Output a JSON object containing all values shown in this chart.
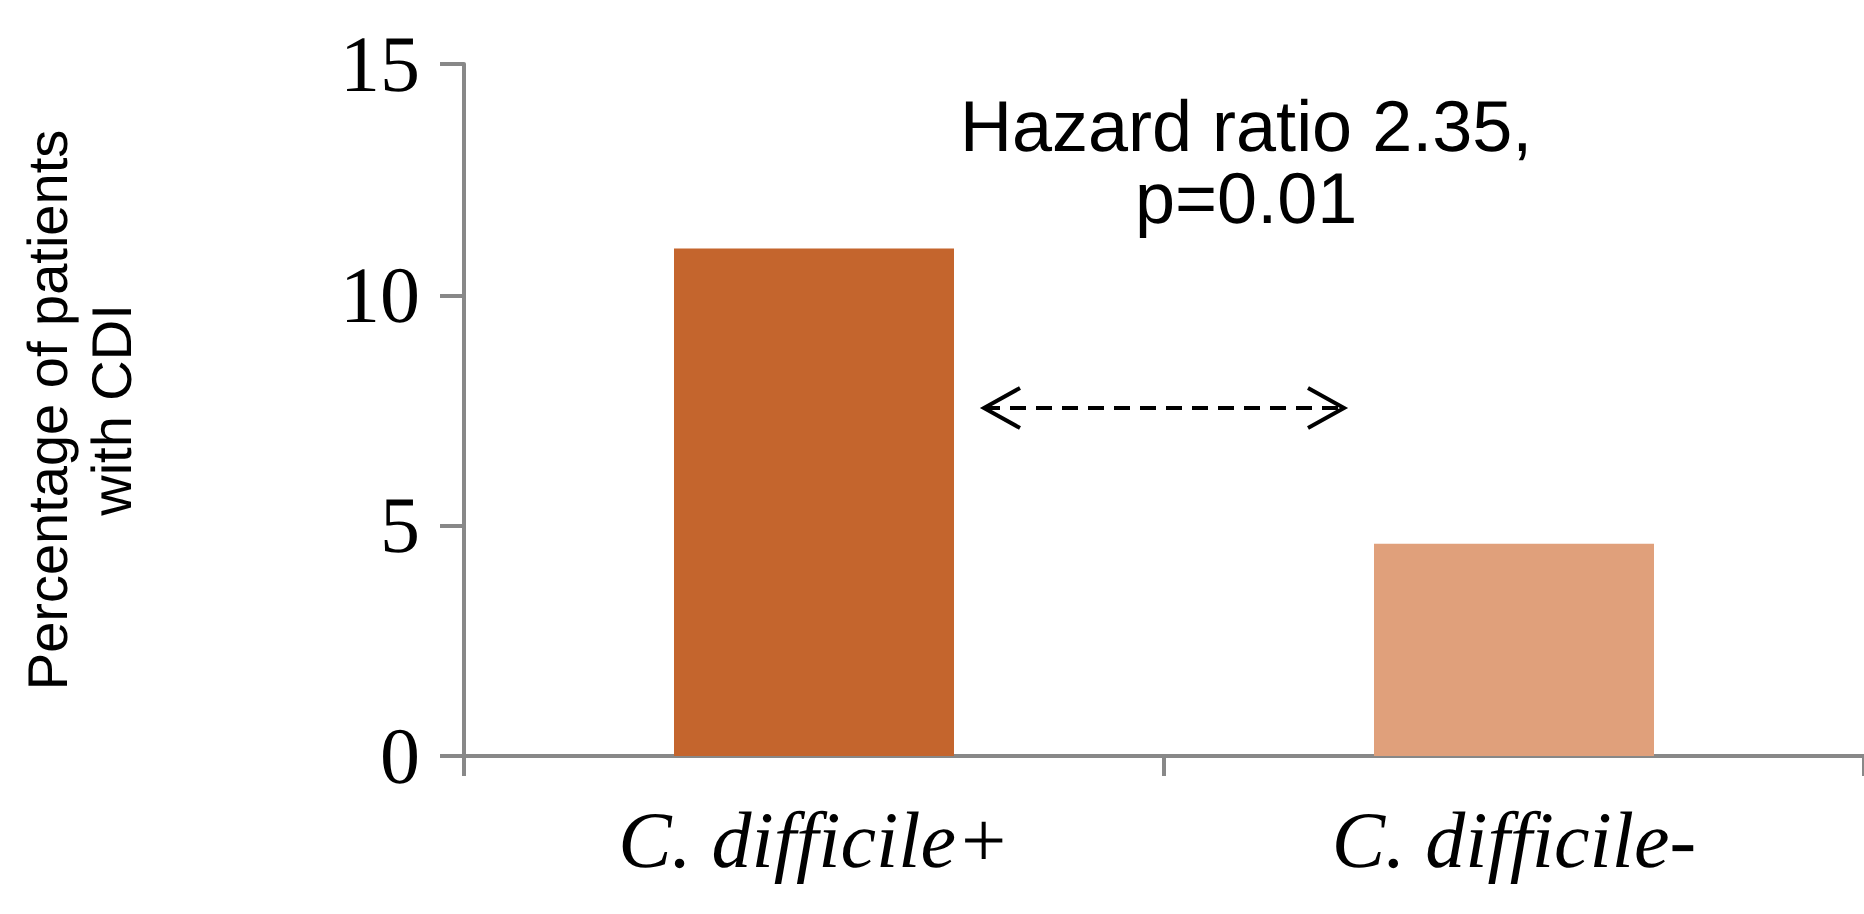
{
  "chart_data": {
    "type": "bar",
    "ylabel": "Percentage of patients\nwith CDI",
    "categories": [
      "C. difficile+",
      "C. difficile-"
    ],
    "values": [
      11.0,
      4.6
    ],
    "colors": [
      "#c4652d",
      "#e0a07b"
    ],
    "ylim": [
      0,
      15
    ],
    "yticks": [
      0,
      5,
      10,
      15
    ],
    "grid": false,
    "annotations": [
      "Hazard ratio 2.35,\np=0.01"
    ]
  }
}
